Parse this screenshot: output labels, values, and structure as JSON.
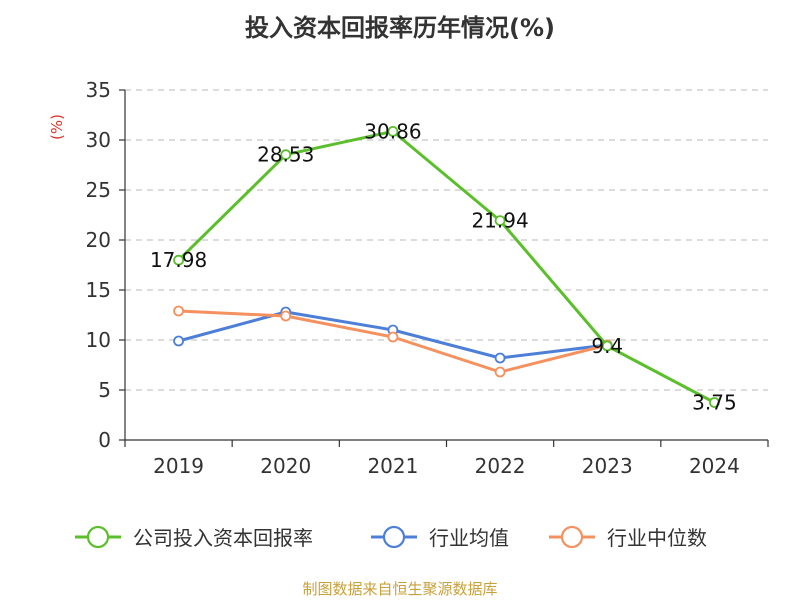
{
  "title": "投入资本回报率历年情况(%)",
  "source": "制图数据来自恒生聚源数据库",
  "chart_data": {
    "type": "line",
    "title": "投入资本回报率历年情况(%)",
    "ylabel": "(%)",
    "xlabel": "",
    "categories": [
      "2019",
      "2020",
      "2021",
      "2022",
      "2023",
      "2024"
    ],
    "ylim": [
      0,
      35
    ],
    "yticks": [
      0,
      5,
      10,
      15,
      20,
      25,
      30,
      35
    ],
    "grid": true,
    "legend_position": "bottom",
    "series": [
      {
        "name": "公司投入资本回报率",
        "color": "#5bbf2b",
        "values": [
          17.98,
          28.53,
          30.86,
          21.94,
          9.4,
          3.75
        ],
        "labels": [
          "17.98",
          "28.53",
          "30.86",
          "21.94",
          "9.4",
          "3.75"
        ]
      },
      {
        "name": "行业均值",
        "color": "#4e7fd8",
        "values": [
          9.9,
          12.8,
          11.0,
          8.2,
          9.5,
          null
        ],
        "labels": []
      },
      {
        "name": "行业中位数",
        "color": "#f4915e",
        "values": [
          12.9,
          12.4,
          10.3,
          6.8,
          9.5,
          null
        ],
        "labels": []
      }
    ]
  }
}
